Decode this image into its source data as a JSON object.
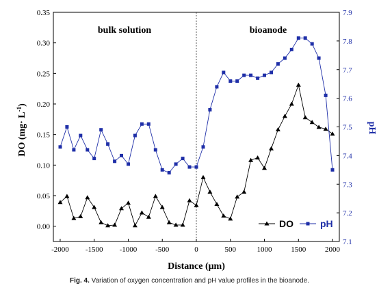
{
  "chart_data": {
    "type": "line",
    "x_label_text": "Distance (μm)",
    "x": [
      -2000,
      -1900,
      -1800,
      -1700,
      -1600,
      -1500,
      -1400,
      -1300,
      -1200,
      -1100,
      -1000,
      -900,
      -800,
      -700,
      -600,
      -500,
      -400,
      -300,
      -200,
      -100,
      0,
      100,
      200,
      300,
      400,
      500,
      600,
      700,
      800,
      900,
      1000,
      1100,
      1200,
      1300,
      1400,
      1500,
      1600,
      1700,
      1800,
      1900,
      2000
    ],
    "xlim": [
      -2100,
      2100
    ],
    "xticks": [
      -2000,
      -1500,
      -1000,
      -500,
      0,
      500,
      1000,
      1500,
      2000
    ],
    "y_left": {
      "label_main": "DO (mg· L",
      "label_sup": "-1",
      "label_close": ")",
      "lim": [
        -0.025,
        0.35
      ],
      "ticks": [
        "0.00",
        "0.05",
        "0.10",
        "0.15",
        "0.20",
        "0.25",
        "0.30",
        "0.35"
      ],
      "color": "#000000"
    },
    "y_right": {
      "label": "pH",
      "lim": [
        7.1,
        7.9
      ],
      "ticks": [
        "7.1",
        "7.2",
        "7.3",
        "7.4",
        "7.5",
        "7.6",
        "7.7",
        "7.8",
        "7.9"
      ],
      "color": "#1f2fa8"
    },
    "series": [
      {
        "name": "DO",
        "axis": "left",
        "marker": "triangle",
        "color": "#000000",
        "values": [
          0.039,
          0.049,
          0.013,
          0.016,
          0.047,
          0.031,
          0.006,
          0.001,
          0.002,
          0.029,
          0.038,
          0.001,
          0.022,
          0.015,
          0.049,
          0.031,
          0.006,
          0.002,
          0.002,
          0.042,
          0.034,
          0.08,
          0.056,
          0.036,
          0.017,
          0.012,
          0.048,
          0.056,
          0.108,
          0.112,
          0.095,
          0.127,
          0.158,
          0.18,
          0.2,
          0.231,
          0.178,
          0.17,
          0.162,
          0.159,
          0.151
        ]
      },
      {
        "name": "pH",
        "axis": "right",
        "marker": "square",
        "color": "#1f2fa8",
        "values": [
          7.43,
          7.5,
          7.42,
          7.47,
          7.42,
          7.39,
          7.49,
          7.44,
          7.38,
          7.4,
          7.37,
          7.47,
          7.51,
          7.51,
          7.42,
          7.35,
          7.34,
          7.37,
          7.39,
          7.36,
          7.36,
          7.43,
          7.56,
          7.64,
          7.69,
          7.66,
          7.66,
          7.68,
          7.68,
          7.67,
          7.68,
          7.69,
          7.72,
          7.74,
          7.77,
          7.81,
          7.81,
          7.79,
          7.74,
          7.61,
          7.35
        ]
      }
    ],
    "annotations": {
      "left_region": "bulk solution",
      "right_region": "bioanode"
    },
    "divider_x": 0,
    "legend_placement": "bottom-right"
  },
  "caption": {
    "label": "Fig. 4.",
    "text": "Variation of oxygen concentration and pH value profiles in the bioanode."
  }
}
